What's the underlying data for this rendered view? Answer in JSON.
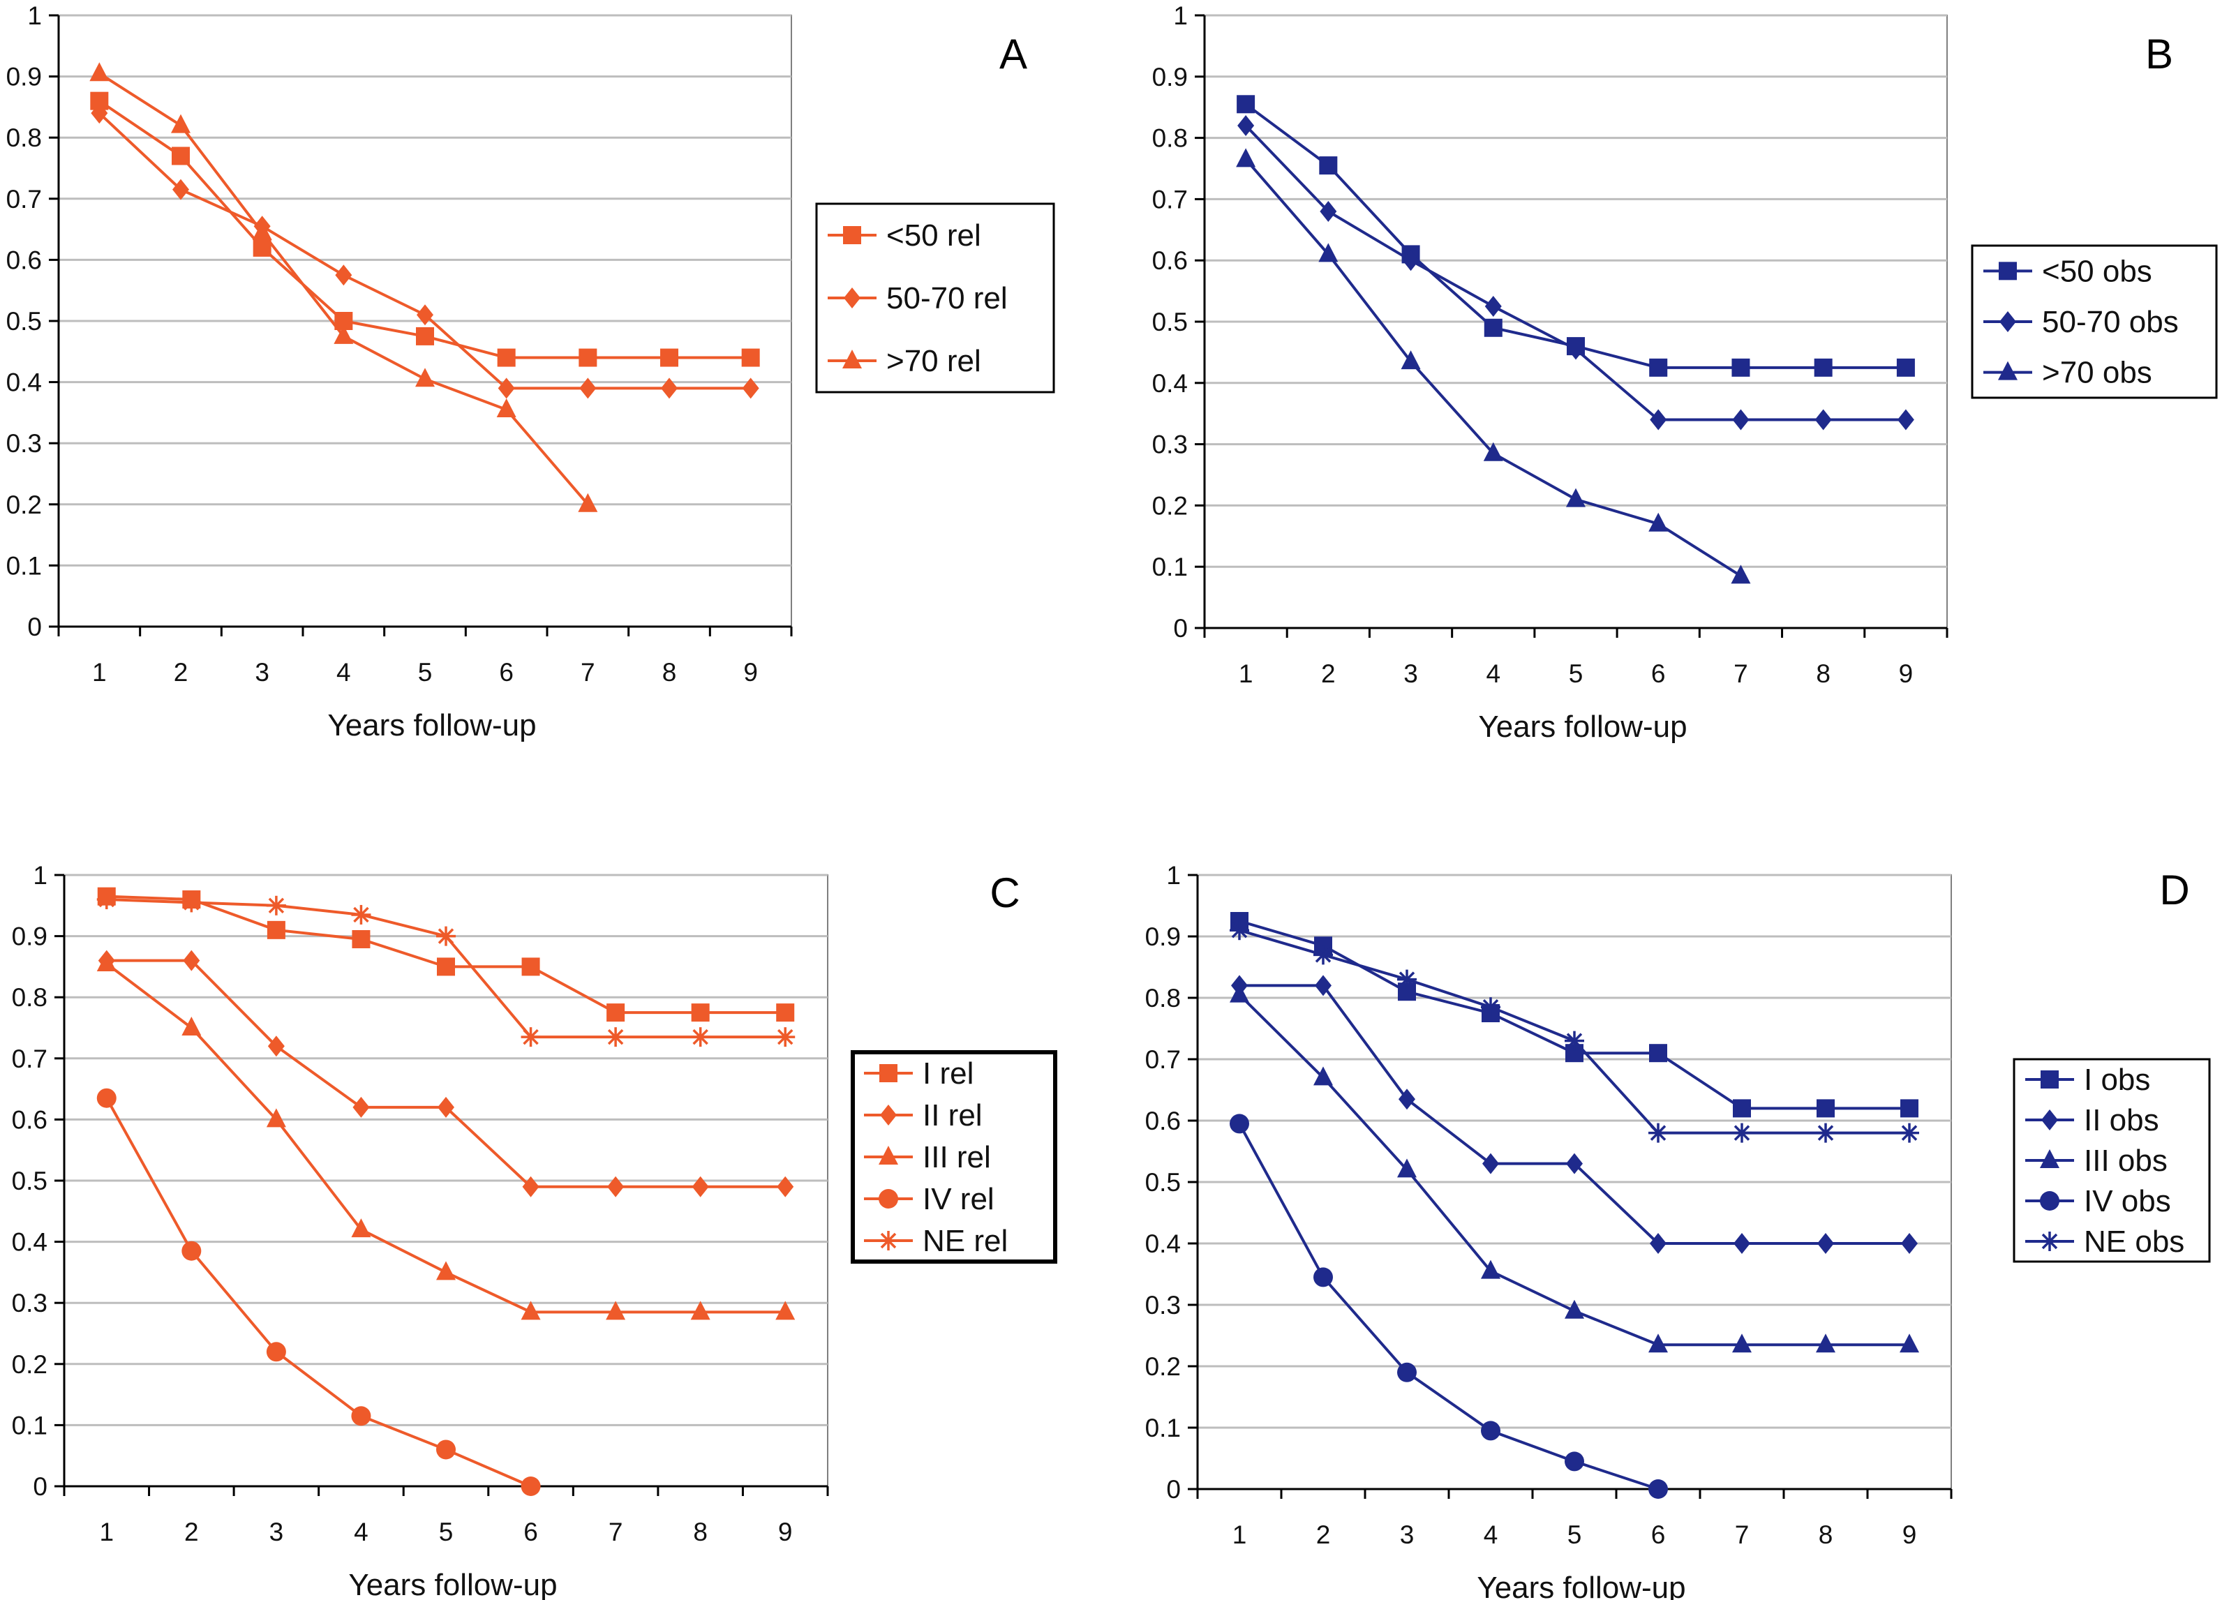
{
  "figure": {
    "description": "Four panels of survival curves by years of follow-up"
  },
  "colors": {
    "rel": "#EE5A2A",
    "obs": "#1F2A8C",
    "grid": "#BDBDBD",
    "axis": "#000000"
  },
  "chart_data": [
    {
      "id": "A",
      "type": "line",
      "panel_letter": "A",
      "title": "",
      "xlabel": "Years follow-up",
      "ylabel": "",
      "categories": [
        "1",
        "2",
        "3",
        "4",
        "5",
        "6",
        "7",
        "8",
        "9"
      ],
      "yticks": [
        "0",
        "0.1",
        "0.2",
        "0.3",
        "0.4",
        "0.5",
        "0.6",
        "0.7",
        "0.8",
        "0.9",
        "1"
      ],
      "ylim": [
        0,
        1
      ],
      "grid": true,
      "legend_position": "right",
      "legend_boxed_bold": false,
      "series": [
        {
          "name": "<50 rel",
          "marker": "square",
          "values": [
            0.86,
            0.77,
            0.62,
            0.5,
            0.475,
            0.44,
            0.44,
            0.44,
            0.44
          ]
        },
        {
          "name": "50-70 rel",
          "marker": "diamond",
          "values": [
            0.84,
            0.715,
            0.655,
            0.575,
            0.51,
            0.39,
            0.39,
            0.39,
            0.39
          ]
        },
        {
          "name": ">70 rel",
          "marker": "triangle",
          "values": [
            0.905,
            0.82,
            0.645,
            0.475,
            0.405,
            0.355,
            0.2,
            null,
            null
          ]
        }
      ]
    },
    {
      "id": "B",
      "type": "line",
      "panel_letter": "B",
      "title": "",
      "xlabel": "Years follow-up",
      "ylabel": "",
      "categories": [
        "1",
        "2",
        "3",
        "4",
        "5",
        "6",
        "7",
        "8",
        "9"
      ],
      "yticks": [
        "0",
        "0.1",
        "0.2",
        "0.3",
        "0.4",
        "0.5",
        "0.6",
        "0.7",
        "0.8",
        "0.9",
        "1"
      ],
      "ylim": [
        0,
        1
      ],
      "grid": true,
      "legend_position": "right",
      "legend_boxed_bold": false,
      "series": [
        {
          "name": "<50 obs",
          "marker": "square",
          "values": [
            0.855,
            0.755,
            0.61,
            0.49,
            0.46,
            0.425,
            0.425,
            0.425,
            0.425
          ]
        },
        {
          "name": "50-70 obs",
          "marker": "diamond",
          "values": [
            0.82,
            0.68,
            0.6,
            0.525,
            0.455,
            0.34,
            0.34,
            0.34,
            0.34
          ]
        },
        {
          "name": ">70 obs",
          "marker": "triangle",
          "values": [
            0.765,
            0.61,
            0.435,
            0.285,
            0.21,
            0.17,
            0.085,
            null,
            null
          ]
        }
      ]
    },
    {
      "id": "C",
      "type": "line",
      "panel_letter": "C",
      "title": "",
      "xlabel": "Years follow-up",
      "ylabel": "",
      "categories": [
        "1",
        "2",
        "3",
        "4",
        "5",
        "6",
        "7",
        "8",
        "9"
      ],
      "yticks": [
        "0",
        "0.1",
        "0.2",
        "0.3",
        "0.4",
        "0.5",
        "0.6",
        "0.7",
        "0.8",
        "0.9",
        "1"
      ],
      "ylim": [
        0,
        1
      ],
      "grid": true,
      "legend_position": "right",
      "legend_boxed_bold": true,
      "series": [
        {
          "name": "I rel",
          "marker": "square",
          "values": [
            0.965,
            0.96,
            0.91,
            0.895,
            0.85,
            0.85,
            0.775,
            0.775,
            0.775
          ]
        },
        {
          "name": "II rel",
          "marker": "diamond",
          "values": [
            0.86,
            0.86,
            0.72,
            0.62,
            0.62,
            0.49,
            0.49,
            0.49,
            0.49
          ]
        },
        {
          "name": "III rel",
          "marker": "triangle",
          "values": [
            0.855,
            0.75,
            0.6,
            0.42,
            0.35,
            0.285,
            0.285,
            0.285,
            0.285
          ]
        },
        {
          "name": "IV rel",
          "marker": "circle",
          "values": [
            0.635,
            0.385,
            0.22,
            0.115,
            0.06,
            0.0,
            null,
            null,
            null
          ]
        },
        {
          "name": "NE rel",
          "marker": "star",
          "values": [
            0.96,
            0.955,
            0.95,
            0.935,
            0.9,
            0.735,
            0.735,
            0.735,
            0.735
          ]
        }
      ]
    },
    {
      "id": "D",
      "type": "line",
      "panel_letter": "D",
      "title": "",
      "xlabel": "Years follow-up",
      "ylabel": "",
      "categories": [
        "1",
        "2",
        "3",
        "4",
        "5",
        "6",
        "7",
        "8",
        "9"
      ],
      "yticks": [
        "0",
        "0.1",
        "0.2",
        "0.3",
        "0.4",
        "0.5",
        "0.6",
        "0.7",
        "0.8",
        "0.9",
        "1"
      ],
      "ylim": [
        0,
        1
      ],
      "grid": true,
      "legend_position": "right",
      "legend_boxed_bold": false,
      "series": [
        {
          "name": "I obs",
          "marker": "square",
          "values": [
            0.925,
            0.885,
            0.81,
            0.775,
            0.71,
            0.71,
            0.62,
            0.62,
            0.62
          ]
        },
        {
          "name": "II obs",
          "marker": "diamond",
          "values": [
            0.82,
            0.82,
            0.635,
            0.53,
            0.53,
            0.4,
            0.4,
            0.4,
            0.4
          ]
        },
        {
          "name": "III obs",
          "marker": "triangle",
          "values": [
            0.805,
            0.67,
            0.52,
            0.355,
            0.29,
            0.235,
            0.235,
            0.235,
            0.235
          ]
        },
        {
          "name": "IV obs",
          "marker": "circle",
          "values": [
            0.595,
            0.345,
            0.19,
            0.095,
            0.045,
            0.0,
            null,
            null,
            null
          ]
        },
        {
          "name": "NE obs",
          "marker": "star",
          "values": [
            0.91,
            0.87,
            0.83,
            0.785,
            0.73,
            0.58,
            0.58,
            0.58,
            0.58
          ]
        }
      ]
    }
  ]
}
